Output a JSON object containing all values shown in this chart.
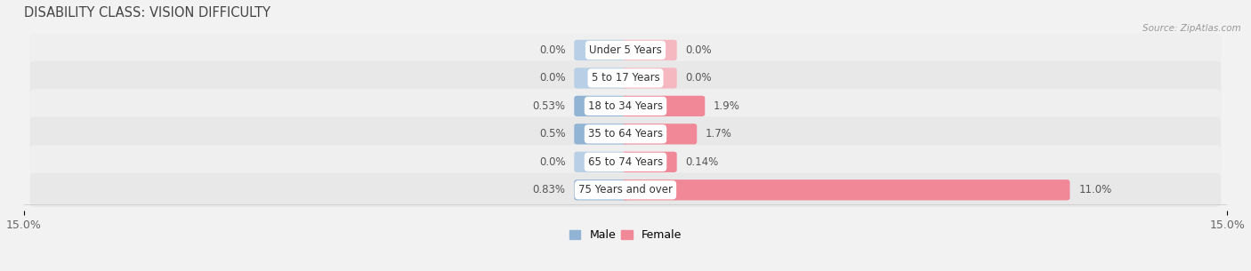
{
  "title": "DISABILITY CLASS: VISION DIFFICULTY",
  "source": "Source: ZipAtlas.com",
  "categories": [
    "Under 5 Years",
    "5 to 17 Years",
    "18 to 34 Years",
    "35 to 64 Years",
    "65 to 74 Years",
    "75 Years and over"
  ],
  "male_values": [
    0.0,
    0.0,
    0.53,
    0.5,
    0.0,
    0.83
  ],
  "female_values": [
    0.0,
    0.0,
    1.9,
    1.7,
    0.14,
    11.0
  ],
  "male_labels": [
    "0.0%",
    "0.0%",
    "0.53%",
    "0.5%",
    "0.0%",
    "0.83%"
  ],
  "female_labels": [
    "0.0%",
    "0.0%",
    "1.9%",
    "1.7%",
    "0.14%",
    "11.0%"
  ],
  "male_color": "#91b4d5",
  "female_color": "#f08898",
  "male_color_light": "#b8cfe6",
  "female_color_light": "#f5b8c0",
  "axis_limit": 15.0,
  "min_bar_val": 1.2,
  "bar_height": 0.58,
  "bg_color": "#f2f2f2",
  "row_colors": [
    "#efefef",
    "#e8e8e8",
    "#efefef",
    "#e8e8e8",
    "#efefef",
    "#e8e8e8"
  ],
  "title_fontsize": 10.5,
  "label_fontsize": 8.5,
  "category_fontsize": 8.5
}
